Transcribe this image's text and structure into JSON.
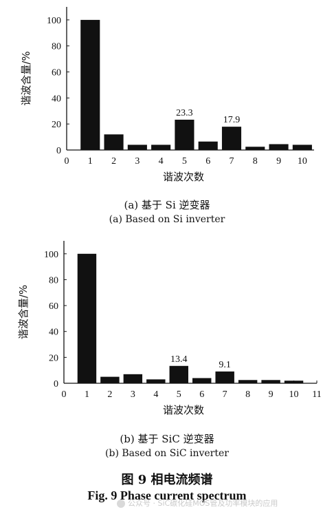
{
  "chart_data": [
    {
      "type": "bar",
      "categories": [
        1,
        2,
        3,
        4,
        5,
        6,
        7,
        8,
        9,
        10
      ],
      "values": [
        100,
        12,
        4,
        4,
        23.3,
        6.5,
        17.9,
        2.5,
        4.5,
        4
      ],
      "data_labels": {
        "5": "23.3",
        "7": "17.9"
      },
      "xticks": [
        "0",
        "1",
        "2",
        "3",
        "4",
        "5",
        "6",
        "7",
        "8",
        "9",
        "10"
      ],
      "yticks": [
        "0",
        "20",
        "40",
        "60",
        "80",
        "100"
      ],
      "xlim": [
        0,
        10.5
      ],
      "ylim": [
        0,
        110
      ],
      "xlabel": "谐波次数",
      "ylabel": "谐波含量/%",
      "caption_cn": "(a)  基于 Si 逆变器",
      "caption_en": "(a) Based on Si inverter"
    },
    {
      "type": "bar",
      "categories": [
        1,
        2,
        3,
        4,
        5,
        6,
        7,
        8,
        9,
        10
      ],
      "values": [
        100,
        5,
        7,
        3,
        13.4,
        4,
        9.1,
        2.5,
        2.5,
        2
      ],
      "data_labels": {
        "5": "13.4",
        "7": "9.1"
      },
      "xticks": [
        "0",
        "1",
        "2",
        "3",
        "4",
        "5",
        "6",
        "7",
        "8",
        "9",
        "10",
        "11"
      ],
      "yticks": [
        "0",
        "20",
        "40",
        "60",
        "80",
        "100"
      ],
      "xlim": [
        0,
        11
      ],
      "ylim": [
        0,
        110
      ],
      "xlabel": "谐波次数",
      "ylabel": "谐波含量/%",
      "caption_cn": "(b)  基于 SiC 逆变器",
      "caption_en": "(b) Based on SiC inverter"
    }
  ],
  "figure": {
    "title_cn": "图 9  相电流频谱",
    "title_en": "Fig. 9 Phase current spectrum"
  },
  "watermark": {
    "text": "公众号 · SiC碳化硅MOS管及功率模块的应用"
  },
  "colors": {
    "bar": "#111111",
    "axis": "#111111",
    "watermark": "#c9c9c9"
  }
}
